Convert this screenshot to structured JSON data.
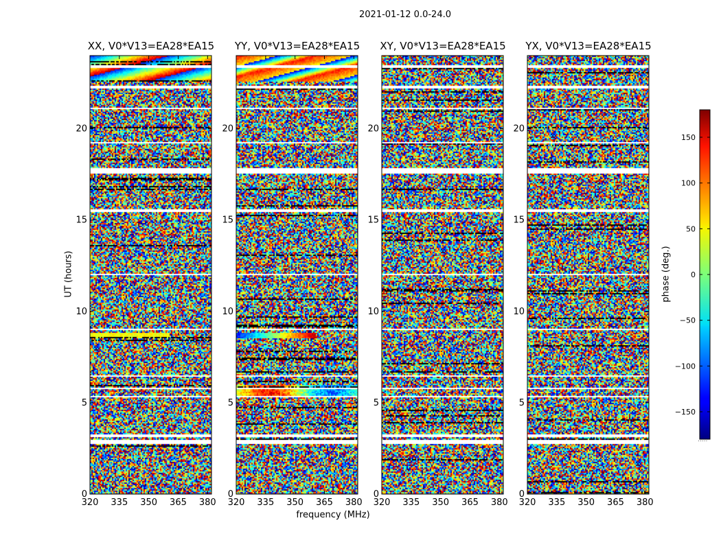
{
  "figure_title": "2021-01-12 0.0-24.0",
  "chart_data": {
    "type": "heatmap",
    "panels": [
      {
        "title": "XX, V0*V13=EA28*EA15",
        "pol": "XX"
      },
      {
        "title": "YY, V0*V13=EA28*EA15",
        "pol": "YY"
      },
      {
        "title": "XY, V0*V13=EA28*EA15",
        "pol": "XY"
      },
      {
        "title": "YX, V0*V13=EA28*EA15",
        "pol": "YX"
      }
    ],
    "xlabel": "frequency (MHz)",
    "ylabel": "UT (hours)",
    "xlim": [
      320,
      382
    ],
    "ylim": [
      0,
      24
    ],
    "xticks": [
      320,
      335,
      350,
      365,
      380
    ],
    "yticks": [
      0,
      5,
      10,
      15,
      20
    ],
    "colorbar": {
      "label": "phase (deg.)",
      "range": [
        -180,
        180
      ],
      "ticks": [
        150,
        100,
        50,
        0,
        -50,
        -100,
        -150
      ],
      "tick_labels": [
        "150",
        "100",
        "50",
        "0",
        "−50",
        "−100",
        "−150"
      ],
      "extra_label": "....."
    },
    "colormap": "jet",
    "flagged_hours": [
      [
        2.75,
        3.0
      ],
      [
        3.15,
        3.3
      ],
      [
        17.6,
        17.9
      ],
      [
        21.1,
        21.2
      ],
      [
        22.25,
        22.4
      ],
      [
        19.2,
        19.3
      ],
      [
        15.5,
        15.6
      ],
      [
        9.0,
        9.1
      ],
      [
        5.3,
        5.4
      ],
      [
        5.8,
        5.85
      ],
      [
        23.35,
        23.5
      ],
      [
        12.0,
        12.08
      ],
      [
        6.45,
        6.5
      ]
    ]
  }
}
